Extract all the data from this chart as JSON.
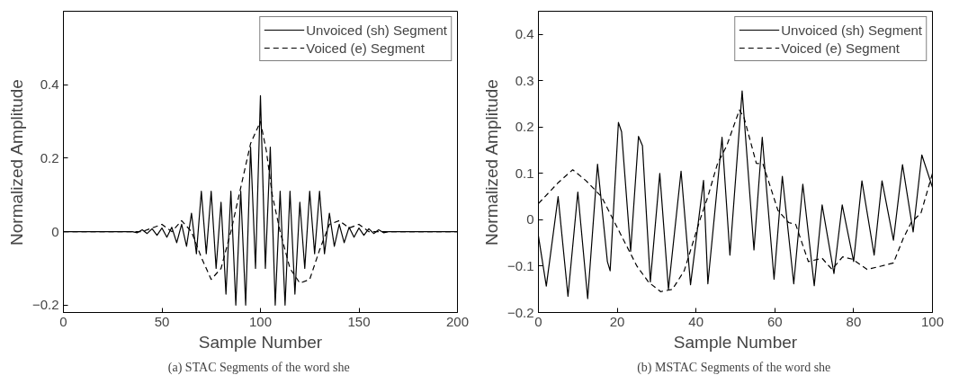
{
  "chart_data": [
    {
      "type": "line",
      "xlabel": "Sample Number",
      "ylabel": "Normalized Amplitude",
      "annotations": [
        "(a)  STAC Segments of the word she"
      ],
      "xlim": [
        0,
        200
      ],
      "ylim": [
        -0.22,
        0.6
      ],
      "xticks": [
        0,
        50,
        100,
        150,
        200
      ],
      "yticks": [
        -0.2,
        0,
        0.2,
        0.4
      ],
      "grid": false,
      "legend": "top right",
      "marker": "none",
      "series": [
        {
          "name": "Unvoiced (sh) Segment",
          "color": "#000000",
          "line_style": "solid",
          "x": [
            0,
            35,
            37.5,
            40,
            42.5,
            45,
            47.5,
            50,
            52.5,
            55,
            57.5,
            60,
            62.5,
            65,
            67.5,
            70,
            72.5,
            75,
            77.5,
            80,
            82.5,
            85,
            87.5,
            90,
            92.5,
            95,
            97.5,
            100,
            102.5,
            105,
            107.5,
            110,
            112.5,
            115,
            117.5,
            120,
            122.5,
            125,
            127.5,
            130,
            132.5,
            135,
            137.5,
            140,
            142.5,
            145,
            147.5,
            150,
            152.5,
            155,
            157.5,
            160,
            162.5,
            165,
            200
          ],
          "values": [
            0,
            0,
            -0.003,
            0.005,
            -0.005,
            0.008,
            -0.01,
            0.01,
            -0.015,
            0.012,
            -0.03,
            0.02,
            -0.04,
            0.05,
            -0.06,
            0.11,
            -0.06,
            0.11,
            -0.1,
            0.08,
            -0.17,
            0.11,
            -0.2,
            0.11,
            -0.2,
            0.23,
            -0.1,
            0.37,
            -0.1,
            0.23,
            -0.2,
            0.11,
            -0.2,
            0.11,
            -0.17,
            0.08,
            -0.1,
            0.11,
            -0.06,
            0.11,
            -0.06,
            0.05,
            -0.04,
            0.02,
            -0.03,
            0.012,
            -0.015,
            0.01,
            -0.01,
            0.008,
            -0.005,
            0.005,
            -0.003,
            0,
            0
          ]
        },
        {
          "name": "Voiced (e) Segment",
          "color": "#000000",
          "line_style": "dashed",
          "x": [
            0,
            40,
            45,
            50,
            55,
            60,
            65,
            70,
            75,
            80,
            85,
            90,
            95,
            100,
            103,
            106,
            110,
            115,
            120,
            125,
            130,
            135,
            140,
            145,
            150,
            155,
            160,
            200
          ],
          "values": [
            0,
            0,
            0.01,
            0.02,
            0.0,
            0.03,
            0.0,
            -0.07,
            -0.13,
            -0.1,
            0.0,
            0.12,
            0.24,
            0.3,
            0.22,
            0.1,
            0.0,
            -0.1,
            -0.14,
            -0.13,
            -0.05,
            0.02,
            0.03,
            0.01,
            0.02,
            0.0,
            0,
            0
          ]
        }
      ]
    },
    {
      "type": "line",
      "xlabel": "Sample Number",
      "ylabel": "Normalized Amplitude",
      "annotations": [
        "(b)  MSTAC Segments of the word she"
      ],
      "xlim": [
        0,
        100
      ],
      "ylim": [
        -0.2,
        0.45
      ],
      "xticks": [
        0,
        20,
        40,
        60,
        80,
        100
      ],
      "yticks": [
        -0.2,
        -0.1,
        0,
        0.1,
        0.2,
        0.3,
        0.4
      ],
      "grid": false,
      "legend": "top right",
      "marker": "none",
      "series": [
        {
          "name": "Unvoiced (sh) Segment",
          "color": "#000000",
          "line_style": "solid",
          "x": [
            0,
            2,
            5,
            7.5,
            10,
            12.5,
            15,
            17.5,
            18.2,
            20.3,
            21.1,
            23.4,
            25.4,
            26.4,
            28.4,
            30.8,
            33,
            36.2,
            38.6,
            41.9,
            43,
            46.6,
            48.6,
            51.7,
            54.7,
            56.8,
            59.8,
            61.9,
            64.8,
            67.1,
            70,
            72,
            75,
            77.1,
            80,
            82.1,
            85.2,
            87.2,
            90.1,
            92.4,
            95.1,
            97.3,
            100
          ],
          "values": [
            -0.035,
            -0.143,
            0.05,
            -0.165,
            0.06,
            -0.17,
            0.12,
            -0.09,
            -0.11,
            0.21,
            0.19,
            -0.068,
            0.18,
            0.16,
            -0.134,
            0.1,
            -0.15,
            0.105,
            -0.14,
            0.085,
            -0.138,
            0.178,
            -0.076,
            0.278,
            -0.065,
            0.178,
            -0.128,
            0.094,
            -0.138,
            0.077,
            -0.142,
            0.032,
            -0.116,
            0.032,
            -0.09,
            0.084,
            -0.076,
            0.084,
            -0.044,
            0.119,
            -0.026,
            0.14,
            0.07
          ]
        },
        {
          "name": "Voiced (e) Segment",
          "color": "#000000",
          "line_style": "dashed",
          "x": [
            0,
            5,
            8.7,
            12,
            16,
            19,
            22,
            25,
            28,
            31,
            34,
            37,
            41,
            43,
            45.4,
            47.8,
            51,
            52.2,
            55.3,
            57,
            60.8,
            63.5,
            65.3,
            68.5,
            72,
            74.5,
            77.2,
            79.7,
            83.4,
            86.9,
            90.1,
            92.6,
            94.6,
            97.1,
            100
          ],
          "values": [
            0.035,
            0.08,
            0.108,
            0.085,
            0.05,
            0.0,
            -0.05,
            -0.1,
            -0.135,
            -0.155,
            -0.15,
            -0.11,
            0.0,
            0.05,
            0.12,
            0.16,
            0.237,
            0.22,
            0.122,
            0.12,
            0.02,
            -0.006,
            -0.01,
            -0.09,
            -0.083,
            -0.107,
            -0.08,
            -0.085,
            -0.107,
            -0.1,
            -0.093,
            -0.04,
            -0.006,
            0.015,
            0.1
          ]
        }
      ]
    }
  ]
}
